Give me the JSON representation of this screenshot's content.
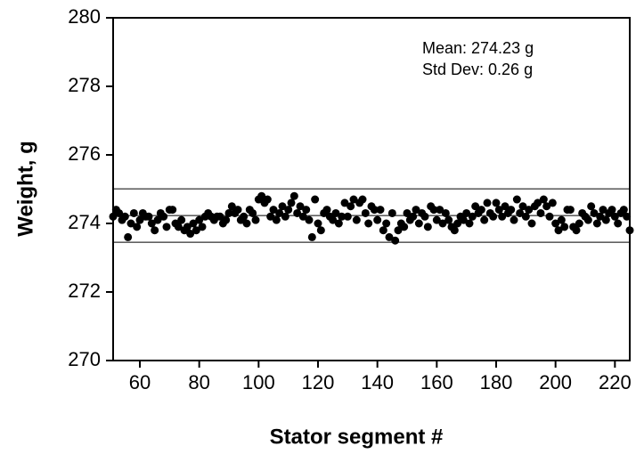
{
  "chart_data": {
    "type": "scatter",
    "xlabel": "Stator segment #",
    "ylabel": "Weight, g",
    "annotations": [
      "Mean: 274.23 g",
      "Std Dev: 0.26 g"
    ],
    "color": "#000000",
    "xlim": [
      51,
      225
    ],
    "ylim": [
      270,
      280
    ],
    "xticks": [
      60,
      80,
      100,
      120,
      140,
      160,
      180,
      200,
      220
    ],
    "yticks": [
      270,
      272,
      274,
      276,
      278,
      280
    ],
    "hlines": [
      275.01,
      274.23,
      273.45
    ],
    "x": [
      51,
      52,
      53,
      54,
      55,
      56,
      57,
      58,
      59,
      60,
      61,
      62,
      63,
      64,
      65,
      66,
      67,
      68,
      69,
      70,
      71,
      72,
      73,
      74,
      75,
      76,
      77,
      78,
      79,
      80,
      81,
      82,
      83,
      84,
      85,
      86,
      87,
      88,
      89,
      90,
      91,
      92,
      93,
      94,
      95,
      96,
      97,
      98,
      99,
      100,
      101,
      102,
      103,
      104,
      105,
      106,
      107,
      108,
      109,
      110,
      111,
      112,
      113,
      114,
      115,
      116,
      117,
      118,
      119,
      120,
      121,
      122,
      123,
      124,
      125,
      126,
      127,
      128,
      129,
      130,
      131,
      132,
      133,
      134,
      135,
      136,
      137,
      138,
      139,
      140,
      141,
      142,
      143,
      144,
      145,
      146,
      147,
      148,
      149,
      150,
      151,
      152,
      153,
      154,
      155,
      156,
      157,
      158,
      159,
      160,
      161,
      162,
      163,
      164,
      165,
      166,
      167,
      168,
      169,
      170,
      171,
      172,
      173,
      174,
      175,
      176,
      177,
      178,
      179,
      180,
      181,
      182,
      183,
      184,
      185,
      186,
      187,
      188,
      189,
      190,
      191,
      192,
      193,
      194,
      195,
      196,
      197,
      198,
      199,
      200,
      201,
      202,
      203,
      204,
      205,
      206,
      207,
      208,
      209,
      210,
      211,
      212,
      213,
      214,
      215,
      216,
      217,
      218,
      219,
      220,
      221,
      222,
      223,
      224,
      225
    ],
    "values": [
      274.2,
      274.4,
      274.3,
      274.1,
      274.2,
      273.6,
      274.0,
      274.3,
      273.9,
      274.1,
      274.3,
      274.2,
      274.2,
      274.0,
      273.8,
      274.1,
      274.3,
      274.2,
      273.9,
      274.4,
      274.4,
      274.0,
      273.9,
      274.1,
      273.8,
      273.9,
      273.7,
      274.0,
      273.8,
      274.1,
      273.9,
      274.2,
      274.3,
      274.2,
      274.1,
      274.2,
      274.2,
      274.0,
      274.1,
      274.3,
      274.5,
      274.3,
      274.4,
      274.1,
      274.2,
      274.0,
      274.4,
      274.3,
      274.1,
      274.7,
      274.8,
      274.6,
      274.7,
      274.2,
      274.4,
      274.1,
      274.3,
      274.5,
      274.2,
      274.4,
      274.6,
      274.8,
      274.3,
      274.5,
      274.2,
      274.4,
      274.1,
      273.6,
      274.7,
      274.0,
      273.8,
      274.3,
      274.4,
      274.2,
      274.1,
      274.3,
      274.0,
      274.2,
      274.6,
      274.2,
      274.5,
      274.7,
      274.1,
      274.6,
      274.7,
      274.3,
      274.0,
      274.5,
      274.4,
      274.1,
      274.4,
      273.8,
      274.0,
      273.6,
      274.3,
      273.5,
      273.8,
      274.0,
      273.9,
      274.3,
      274.1,
      274.2,
      274.4,
      274.0,
      274.3,
      274.2,
      273.9,
      274.5,
      274.4,
      274.1,
      274.4,
      274.0,
      274.3,
      274.1,
      273.9,
      273.8,
      274.0,
      274.2,
      274.1,
      274.3,
      274.0,
      274.2,
      274.5,
      274.3,
      274.4,
      274.1,
      274.6,
      274.3,
      274.2,
      274.6,
      274.4,
      274.2,
      274.5,
      274.3,
      274.4,
      274.1,
      274.7,
      274.3,
      274.5,
      274.2,
      274.4,
      274.0,
      274.5,
      274.6,
      274.3,
      274.7,
      274.5,
      274.2,
      274.6,
      274.0,
      273.8,
      274.1,
      273.9,
      274.4,
      274.4,
      273.9,
      273.8,
      274.0,
      274.3,
      274.2,
      274.1,
      274.5,
      274.3,
      274.0,
      274.2,
      274.4,
      274.1,
      274.3,
      274.4,
      274.2,
      274.0,
      274.3,
      274.4,
      274.2,
      273.8
    ]
  }
}
